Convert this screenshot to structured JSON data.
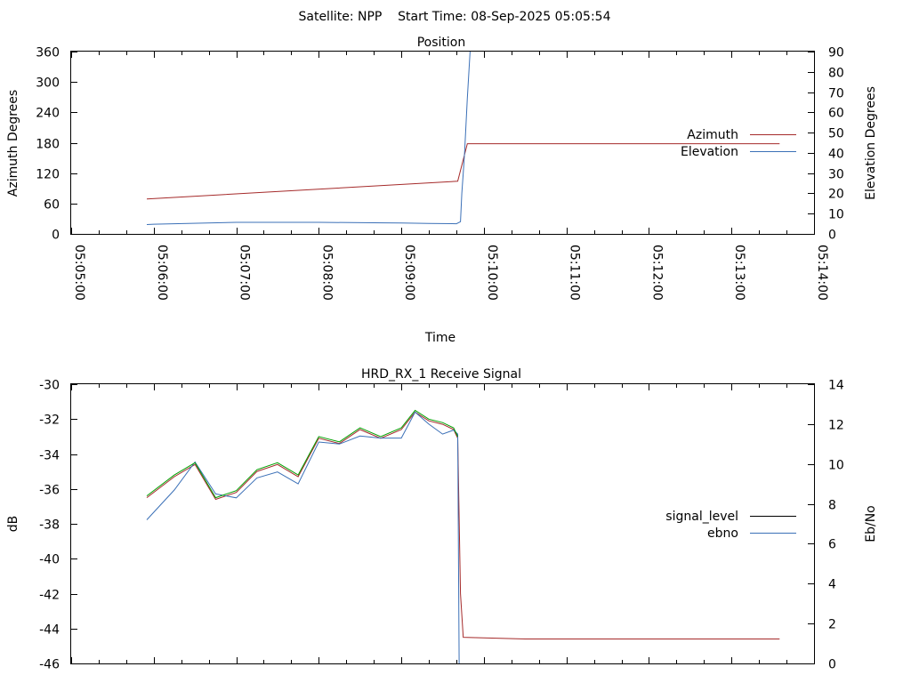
{
  "page_title": "Satellite: NPP    Start Time: 08-Sep-2025 05:05:54",
  "chart_data": [
    {
      "type": "line",
      "title": "Position",
      "xlabel": "Time",
      "ylabel": "Azimuth Degrees",
      "y2label": "Elevation Degrees",
      "xlim": [
        "05:05:00",
        "05:14:00"
      ],
      "ylim": [
        0,
        360
      ],
      "y2lim": [
        0,
        90
      ],
      "x_ticks": [
        "05:05:00",
        "05:06:00",
        "05:07:00",
        "05:08:00",
        "05:09:00",
        "05:10:00",
        "05:11:00",
        "05:12:00",
        "05:13:00",
        "05:14:00"
      ],
      "y_ticks": [
        "0",
        "60",
        "120",
        "180",
        "240",
        "300",
        "360"
      ],
      "y2_ticks": [
        "0",
        "10",
        "20",
        "30",
        "40",
        "50",
        "60",
        "70",
        "80",
        "90"
      ],
      "legend_position": "right",
      "series": [
        {
          "name": "Azimuth",
          "axis": "y",
          "color": "#a52a2a",
          "x": [
            "05:05:55",
            "05:09:41",
            "05:09:48",
            "05:13:35"
          ],
          "y": [
            69,
            104,
            178,
            178
          ]
        },
        {
          "name": "Elevation",
          "axis": "y2",
          "color": "#3b70b7",
          "x": [
            "05:05:55",
            "05:06:00",
            "05:07:00",
            "05:08:00",
            "05:08:40",
            "05:09:00",
            "05:09:20",
            "05:09:40",
            "05:09:43",
            "05:09:44",
            "05:09:45",
            "05:09:46",
            "05:09:48",
            "05:09:50"
          ],
          "y": [
            4.6,
            4.8,
            5.7,
            5.7,
            5.5,
            5.4,
            5.2,
            5.0,
            6,
            20,
            30,
            40,
            67,
            90
          ]
        }
      ]
    },
    {
      "type": "line",
      "title": "HRD_RX_1 Receive Signal",
      "ylabel": "dB",
      "y2label": "Eb/No",
      "xlim": [
        "05:05:00",
        "05:14:00"
      ],
      "ylim": [
        -46,
        -30
      ],
      "y2lim": [
        0,
        14
      ],
      "y_ticks": [
        "-30",
        "-32",
        "-34",
        "-36",
        "-38",
        "-40",
        "-42",
        "-44",
        "-46"
      ],
      "y2_ticks": [
        "0",
        "2",
        "4",
        "6",
        "8",
        "10",
        "12",
        "14"
      ],
      "legend_position": "right",
      "series": [
        {
          "name": "signal_level",
          "axis": "y",
          "color": "#000000",
          "drawn_color": "#a52a2a",
          "x": [
            "05:05:55",
            "05:06:15",
            "05:06:30",
            "05:06:45",
            "05:07:00",
            "05:07:15",
            "05:07:30",
            "05:07:45",
            "05:08:00",
            "05:08:15",
            "05:08:30",
            "05:08:45",
            "05:09:00",
            "05:09:10",
            "05:09:20",
            "05:09:30",
            "05:09:38",
            "05:09:41",
            "05:09:43",
            "05:09:45",
            "05:10:30",
            "05:11:30",
            "05:12:30",
            "05:13:35"
          ],
          "y": [
            -36.5,
            -35.3,
            -34.6,
            -36.6,
            -36.2,
            -35.0,
            -34.6,
            -35.3,
            -33.1,
            -33.4,
            -32.6,
            -33.1,
            -32.6,
            -31.6,
            -32.1,
            -32.3,
            -32.6,
            -33.1,
            -42.0,
            -44.5,
            -44.6,
            -44.6,
            -44.6,
            -44.6
          ]
        },
        {
          "name": "ebno",
          "axis": "y2",
          "color": "#3b70b7",
          "x": [
            "05:05:55",
            "05:06:15",
            "05:06:30",
            "05:06:45",
            "05:07:00",
            "05:07:15",
            "05:07:30",
            "05:07:45",
            "05:08:00",
            "05:08:15",
            "05:08:30",
            "05:08:45",
            "05:09:00",
            "05:09:10",
            "05:09:20",
            "05:09:30",
            "05:09:38",
            "05:09:41",
            "05:09:42"
          ],
          "y": [
            7.2,
            8.7,
            10.1,
            8.5,
            8.3,
            9.3,
            9.6,
            9.0,
            11.1,
            11.0,
            11.4,
            11.3,
            11.3,
            12.6,
            12.0,
            11.5,
            11.7,
            11.5,
            0.0
          ]
        },
        {
          "name": "",
          "axis": "y",
          "color": "#00a000",
          "x": [
            "05:05:55",
            "05:06:15",
            "05:06:30",
            "05:06:45",
            "05:07:00",
            "05:07:15",
            "05:07:30",
            "05:07:45",
            "05:08:00",
            "05:08:15",
            "05:08:30",
            "05:08:45",
            "05:09:00",
            "05:09:10",
            "05:09:20",
            "05:09:30",
            "05:09:38",
            "05:09:41"
          ],
          "y": [
            -36.4,
            -35.2,
            -34.5,
            -36.5,
            -36.1,
            -34.9,
            -34.5,
            -35.2,
            -33.0,
            -33.3,
            -32.5,
            -33.0,
            -32.5,
            -31.5,
            -32.0,
            -32.2,
            -32.5,
            -33.0
          ]
        }
      ]
    }
  ]
}
